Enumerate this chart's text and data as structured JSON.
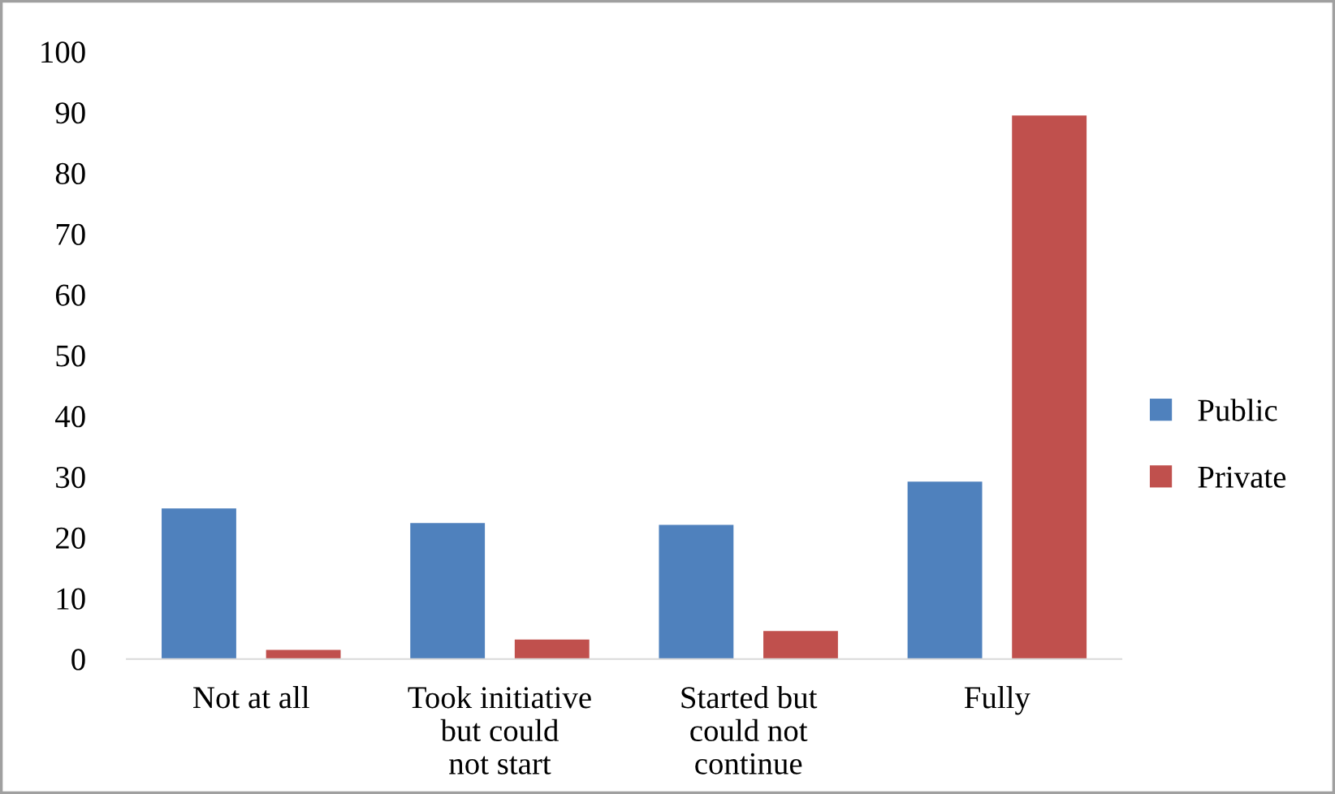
{
  "chart_data": {
    "type": "bar",
    "categories": [
      "Not at all",
      "Took initiative\nbut could\nnot start",
      "Started but\ncould not\ncontinue",
      "Fully"
    ],
    "series": [
      {
        "name": "Public",
        "color": "#4f81bd",
        "values": [
          24.8,
          22.4,
          22.1,
          29.2
        ]
      },
      {
        "name": "Private",
        "color": "#c0504d",
        "values": [
          1.5,
          3.2,
          4.6,
          89.5
        ]
      }
    ],
    "ylim": [
      0,
      100
    ],
    "yticks": [
      0,
      10,
      20,
      30,
      40,
      50,
      60,
      70,
      80,
      90,
      100
    ],
    "grid": false,
    "legend": "right"
  }
}
